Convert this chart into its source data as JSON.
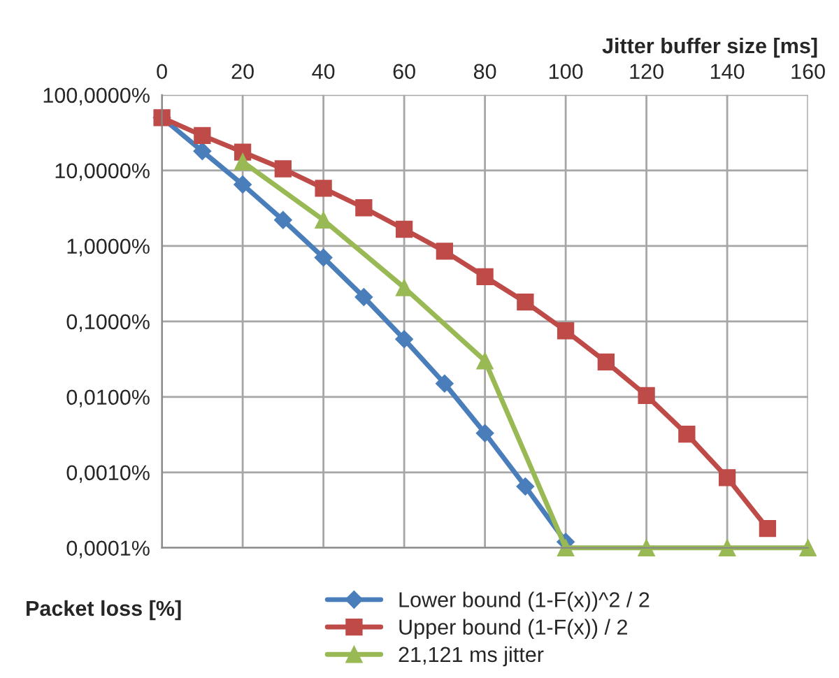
{
  "chart_data": {
    "type": "line",
    "xlabel": "Jitter buffer size [ms]",
    "ylabel": "Packet loss [%]",
    "log": true,
    "grid": true,
    "legend": "bottom",
    "line_style": "solid",
    "xlim": [
      0,
      160
    ],
    "xticks": [
      0,
      20,
      40,
      60,
      80,
      100,
      120,
      140,
      160
    ],
    "ylim": [
      0.0001,
      100
    ],
    "yticks": [
      {
        "value": 0.0001,
        "label": "0,0001%"
      },
      {
        "value": 0.001,
        "label": "0,0010%"
      },
      {
        "value": 0.01,
        "label": "0,0100%"
      },
      {
        "value": 0.1,
        "label": "0,1000%"
      },
      {
        "value": 1,
        "label": "1,0000%"
      },
      {
        "value": 10,
        "label": "10,0000%"
      },
      {
        "value": 100,
        "label": "100,0000%"
      }
    ],
    "series": [
      {
        "name": "Lower bound (1-F(x))^2 / 2",
        "color": "#4a7ebb",
        "marker": "diamond",
        "x": [
          0,
          10,
          20,
          30,
          40,
          50,
          60,
          70,
          80,
          90,
          100
        ],
        "values": [
          50,
          18,
          6.5,
          2.2,
          0.7,
          0.21,
          0.058,
          0.015,
          0.0033,
          0.00065,
          0.00012
        ]
      },
      {
        "name": "Upper bound (1-F(x)) / 2",
        "color": "#be4b48",
        "marker": "square",
        "x": [
          0,
          10,
          20,
          30,
          40,
          50,
          60,
          70,
          80,
          90,
          100,
          110,
          120,
          130,
          140,
          150
        ],
        "values": [
          50,
          29,
          17.5,
          10.5,
          5.8,
          3.2,
          1.66,
          0.85,
          0.39,
          0.18,
          0.075,
          0.029,
          0.0104,
          0.0032,
          0.00085,
          0.00018
        ]
      },
      {
        "name": "21,121 ms jitter",
        "color": "#98b954",
        "marker": "triangle",
        "x": [
          20,
          40,
          60,
          80,
          100,
          120,
          140,
          160
        ],
        "values": [
          13,
          2.2,
          0.28,
          0.03,
          0.0001,
          0.0001,
          0.0001,
          0.0001
        ]
      }
    ]
  }
}
